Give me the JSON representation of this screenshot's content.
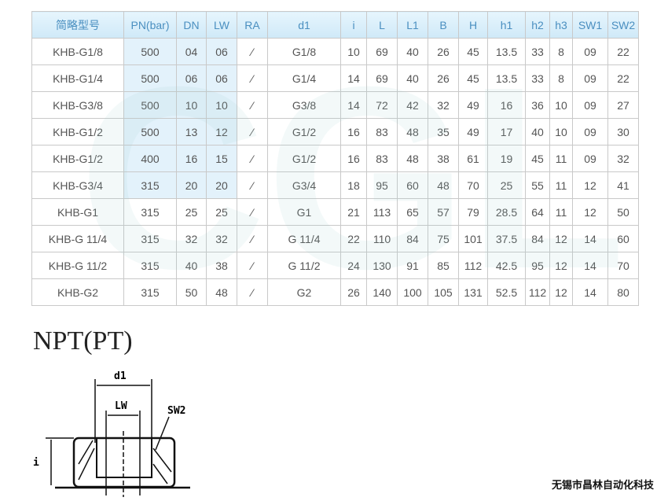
{
  "table": {
    "headers": [
      "简略型号",
      "PN(bar)",
      "DN",
      "LW",
      "RA",
      "d1",
      "i",
      "L",
      "L1",
      "B",
      "H",
      "h1",
      "h2",
      "h3",
      "SW1",
      "SW2"
    ],
    "rows": [
      [
        "KHB-G1/8",
        "500",
        "04",
        "06",
        "⁄",
        "G1/8",
        "10",
        "69",
        "40",
        "26",
        "45",
        "13.5",
        "33",
        "8",
        "09",
        "22"
      ],
      [
        "KHB-G1/4",
        "500",
        "06",
        "06",
        "⁄",
        "G1/4",
        "14",
        "69",
        "40",
        "26",
        "45",
        "13.5",
        "33",
        "8",
        "09",
        "22"
      ],
      [
        "KHB-G3/8",
        "500",
        "10",
        "10",
        "⁄",
        "G3/8",
        "14",
        "72",
        "42",
        "32",
        "49",
        "16",
        "36",
        "10",
        "09",
        "27"
      ],
      [
        "KHB-G1/2",
        "500",
        "13",
        "12",
        "⁄",
        "G1/2",
        "16",
        "83",
        "48",
        "35",
        "49",
        "17",
        "40",
        "10",
        "09",
        "30"
      ],
      [
        "KHB-G1/2",
        "400",
        "16",
        "15",
        "⁄",
        "G1/2",
        "16",
        "83",
        "48",
        "38",
        "61",
        "19",
        "45",
        "11",
        "09",
        "32"
      ],
      [
        "KHB-G3/4",
        "315",
        "20",
        "20",
        "⁄",
        "G3/4",
        "18",
        "95",
        "60",
        "48",
        "70",
        "25",
        "55",
        "11",
        "12",
        "41"
      ],
      [
        "KHB-G1",
        "315",
        "25",
        "25",
        "⁄",
        "G1",
        "21",
        "113",
        "65",
        "57",
        "79",
        "28.5",
        "64",
        "11",
        "12",
        "50"
      ],
      [
        "KHB-G 11/4",
        "315",
        "32",
        "32",
        "⁄",
        "G 11/4",
        "22",
        "110",
        "84",
        "75",
        "101",
        "37.5",
        "84",
        "12",
        "14",
        "60"
      ],
      [
        "KHB-G 11/2",
        "315",
        "40",
        "38",
        "⁄",
        "G 11/2",
        "24",
        "130",
        "91",
        "85",
        "112",
        "42.5",
        "95",
        "12",
        "14",
        "70"
      ],
      [
        "KHB-G2",
        "315",
        "50",
        "48",
        "⁄",
        "G2",
        "26",
        "140",
        "100",
        "105",
        "131",
        "52.5",
        "112",
        "12",
        "14",
        "80"
      ]
    ]
  },
  "section_title": "NPT(PT)",
  "drawing": {
    "labels": {
      "d1": "d1",
      "lw": "LW",
      "sw2": "SW2",
      "i": "i"
    }
  },
  "company": "无锡市昌林自动化科技"
}
